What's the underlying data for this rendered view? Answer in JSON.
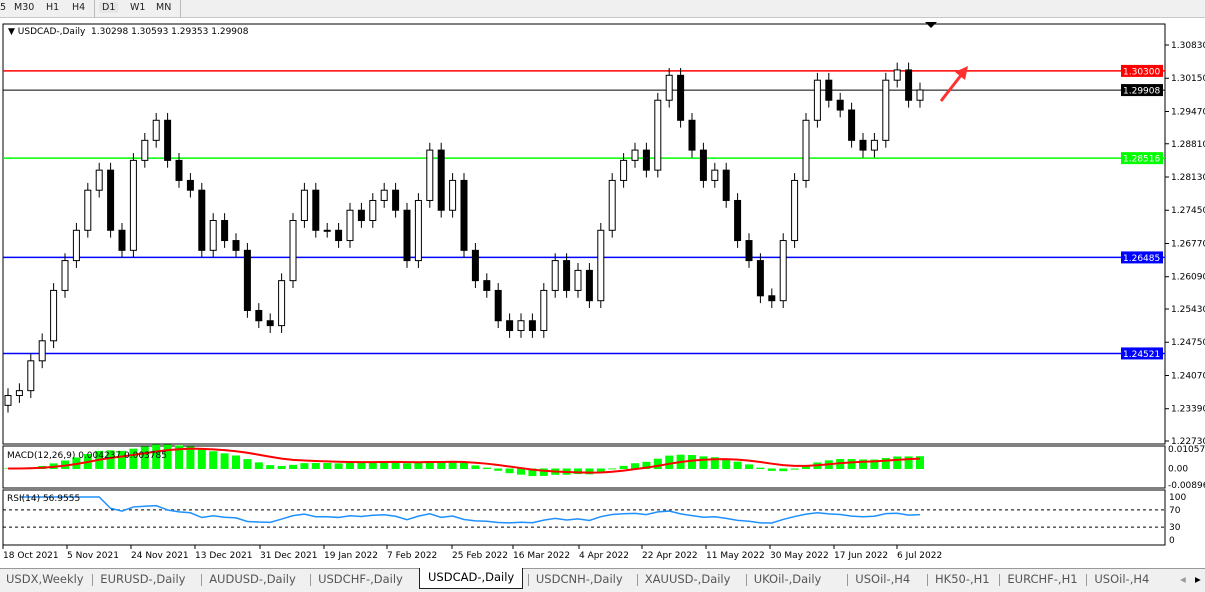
{
  "timeframes": [
    "5",
    "M30",
    "H1",
    "H4",
    "D1",
    "W1",
    "MN"
  ],
  "active_timeframe": "D1",
  "legend": {
    "symbol": "USDCAD-,Daily",
    "ohlc": "1.30298 1.30593 1.29353 1.29908"
  },
  "price_axis": {
    "ylim": [
      1.2273,
      1.3083
    ],
    "ticks": [
      "1.30830",
      "1.30150",
      "1.29470",
      "1.28810",
      "1.28130",
      "1.27450",
      "1.26770",
      "1.26090",
      "1.25430",
      "1.24750",
      "1.24070",
      "1.23390",
      "1.22730"
    ]
  },
  "levels": [
    {
      "value": 1.303,
      "label": "1.30300",
      "color": "#ff0000"
    },
    {
      "value": 1.29908,
      "label": "1.29908",
      "color": "#000000"
    },
    {
      "value": 1.28516,
      "label": "1.28516",
      "color": "#00ff00"
    },
    {
      "value": 1.26485,
      "label": "1.26485",
      "color": "#0000ff"
    },
    {
      "value": 1.24521,
      "label": "1.24521",
      "color": "#0000ff"
    }
  ],
  "chart_data": {
    "type": "candlestick",
    "symbol": "USDCAD",
    "timeframe": "Daily",
    "closes": [
      1.2366,
      1.2376,
      1.2437,
      1.2478,
      1.2581,
      1.2642,
      1.2704,
      1.2786,
      1.2827,
      1.2704,
      1.2663,
      1.2847,
      1.2888,
      1.2929,
      1.2847,
      1.2806,
      1.2786,
      1.2663,
      1.2724,
      1.2683,
      1.2663,
      1.254,
      1.2519,
      1.2509,
      1.2601,
      1.2724,
      1.2786,
      1.2704,
      1.2704,
      1.2683,
      1.2745,
      1.2724,
      1.2765,
      1.2786,
      1.2745,
      1.2642,
      1.2765,
      1.2868,
      1.2745,
      1.2806,
      1.2663,
      1.2601,
      1.2581,
      1.2519,
      1.2499,
      1.2519,
      1.2499,
      1.2581,
      1.2642,
      1.2581,
      1.2622,
      1.256,
      1.2704,
      1.2806,
      1.2847,
      1.2868,
      1.2827,
      1.297,
      1.3021,
      1.2929,
      1.2868,
      1.2806,
      1.2827,
      1.2765,
      1.2683,
      1.2642,
      1.257,
      1.256,
      1.2683,
      1.2806,
      1.2929,
      1.3011,
      1.297,
      1.295,
      1.2888,
      1.2868,
      1.2888,
      1.3011,
      1.3032,
      1.297,
      1.2991
    ],
    "date_labels": [
      "18 Oct 2021",
      "5 Nov 2021",
      "24 Nov 2021",
      "13 Dec 2021",
      "31 Dec 2021",
      "19 Jan 2022",
      "7 Feb 2022",
      "25 Feb 2022",
      "16 Mar 2022",
      "4 Apr 2022",
      "22 Apr 2022",
      "11 May 2022",
      "30 May 2022",
      "17 Jun 2022",
      "6 Jul 2022"
    ]
  },
  "macd": {
    "label": "MACD(12,26,9) 0.004237 0.003785",
    "ticks": [
      "0.010578",
      "0.00",
      "-0.00896"
    ],
    "hist_color": "#00ff00",
    "signal_color": "#ff0000"
  },
  "rsi": {
    "label": "RSI(14) 56.9555",
    "ticks": [
      "100",
      "70",
      "30",
      "0"
    ],
    "color": "#1e90ff"
  },
  "tabs": [
    "USDX,Weekly",
    "EURUSD-,Daily",
    "AUDUSD-,Daily",
    "USDCHF-,Daily",
    "USDCAD-,Daily",
    "USDCNH-,Daily",
    "XAUUSD-,Daily",
    "UKOil-,Daily",
    "USOil-,H4",
    "HK50-,H1",
    "EURCHF-,H1",
    "USOil-,H4"
  ],
  "active_tab": "USDCAD-,Daily"
}
